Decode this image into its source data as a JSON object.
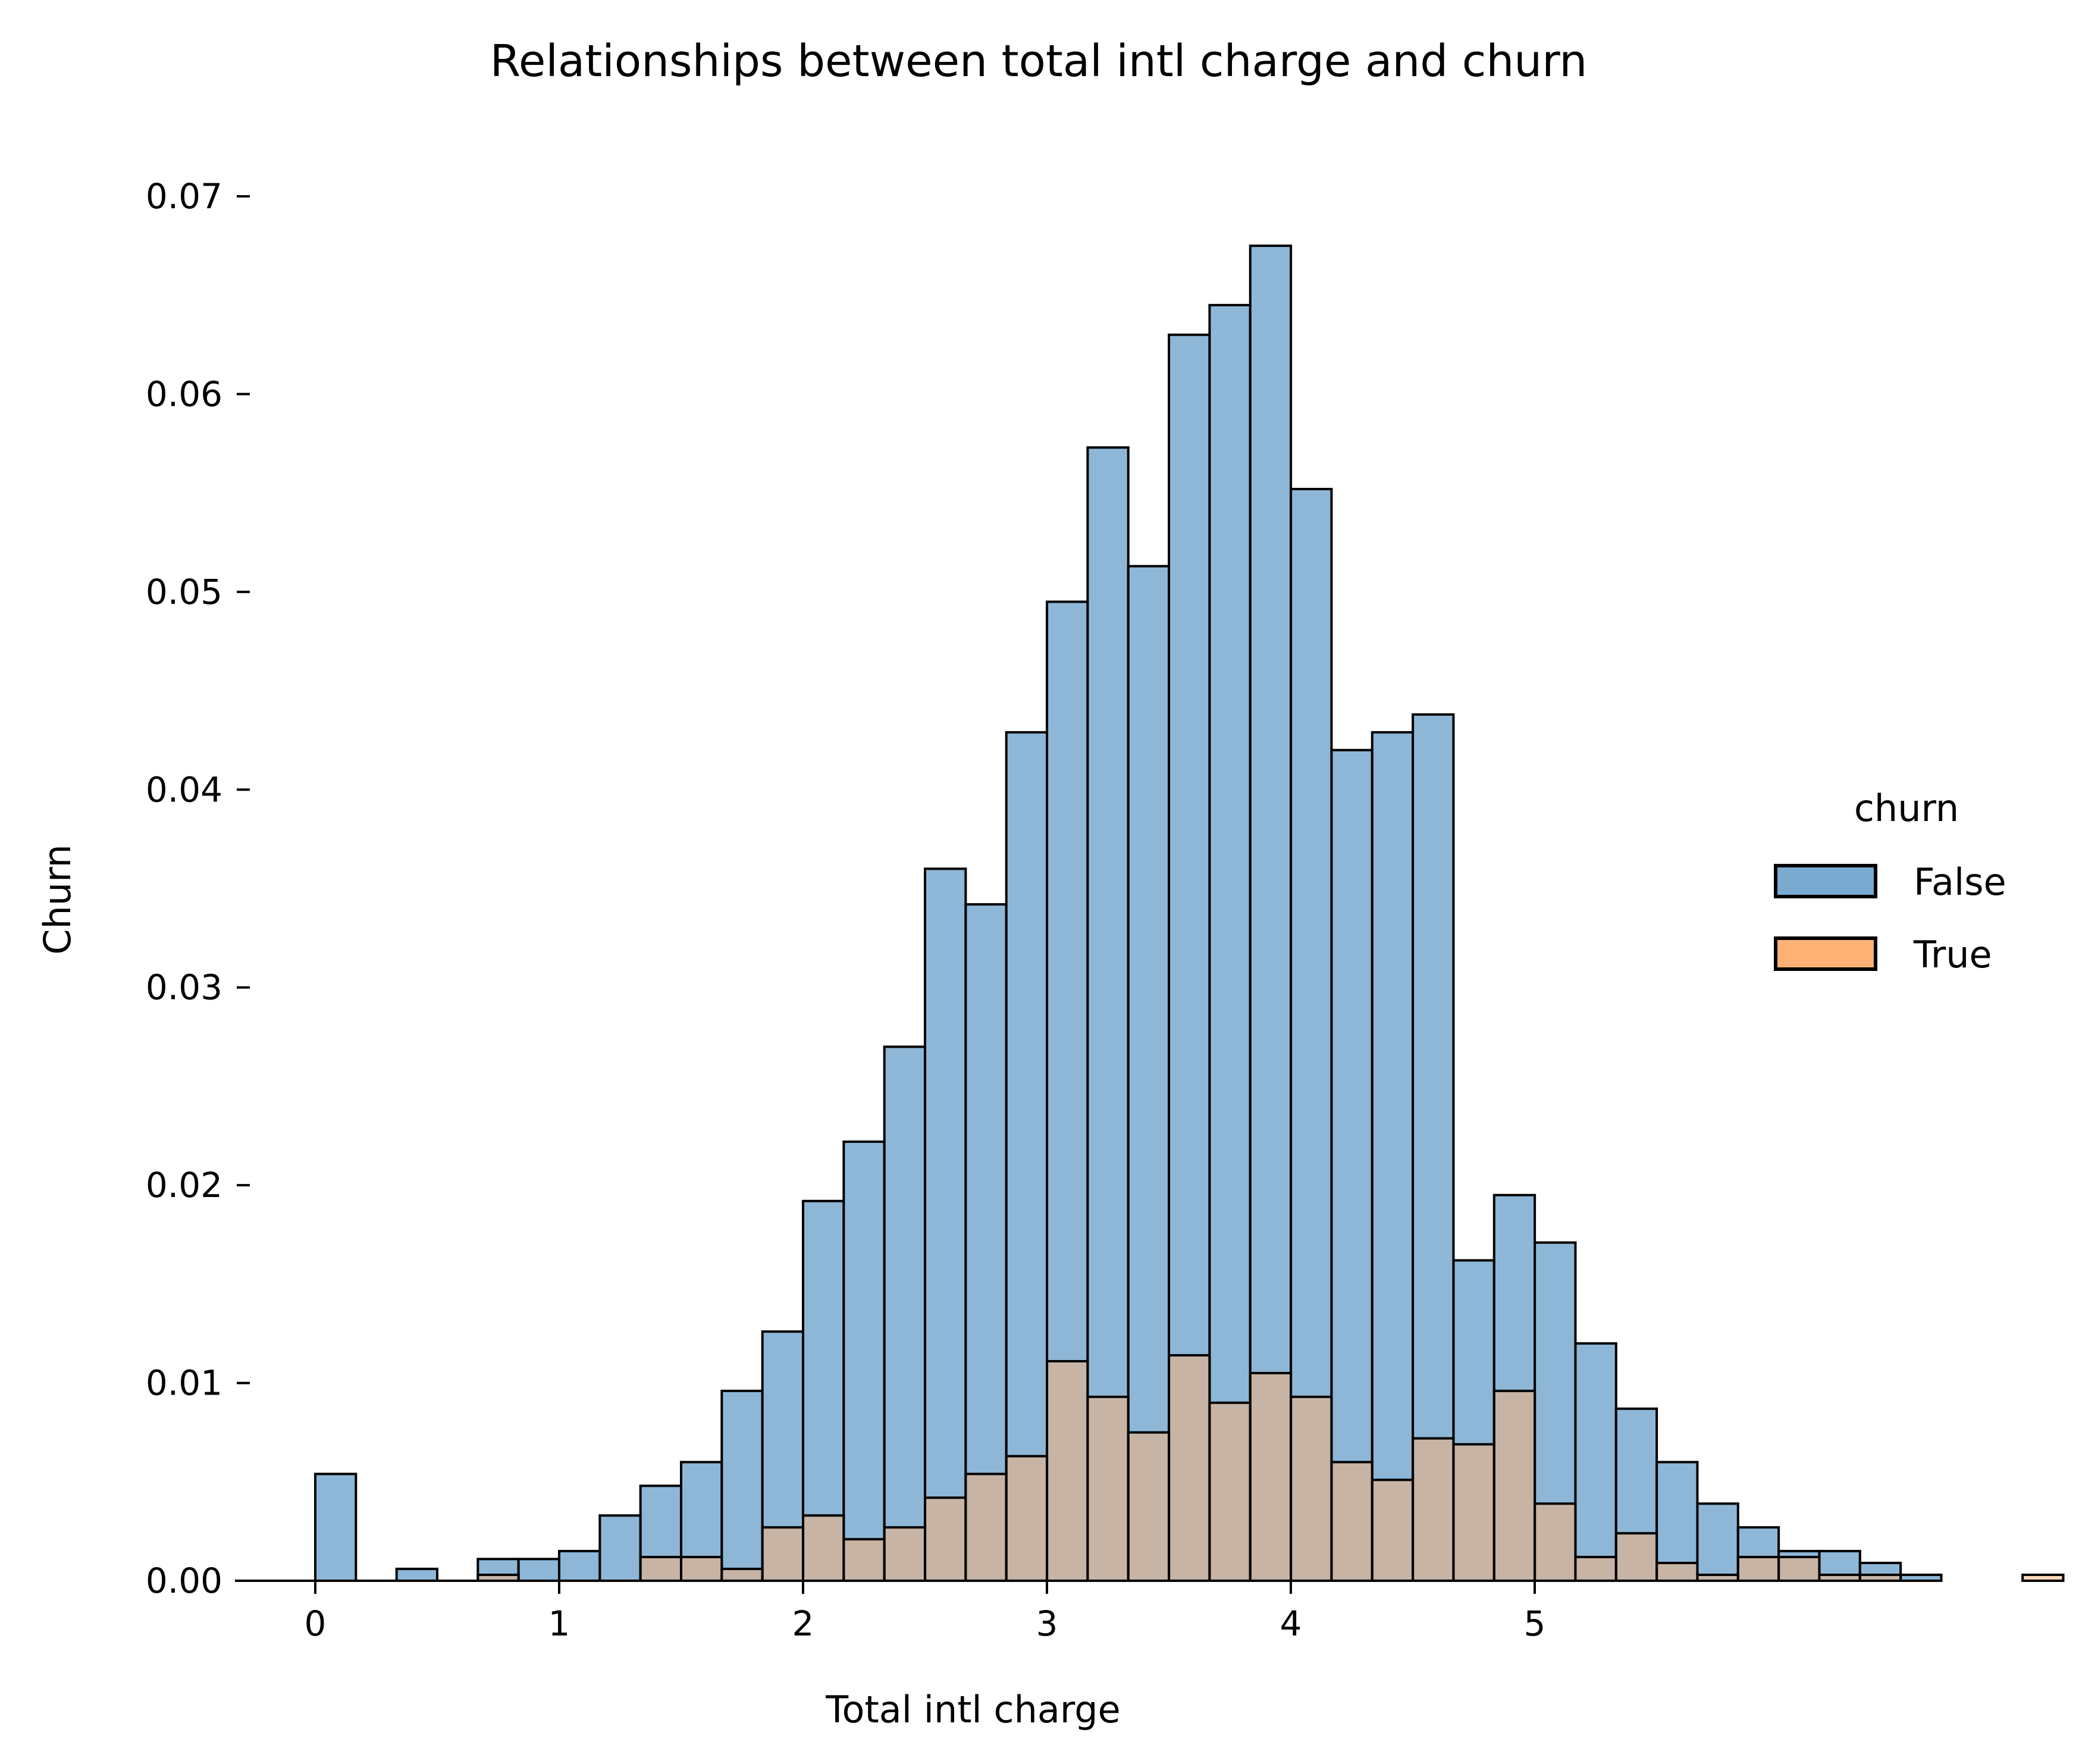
{
  "chart_data": {
    "type": "histogram",
    "title": "Relationships between total intl charge and churn",
    "xlabel": "Total intl charge",
    "ylabel": "Churn",
    "xlim": [
      -0.33,
      5.67
    ],
    "ylim": [
      0,
      0.07
    ],
    "xticks": [
      0,
      1,
      2,
      3,
      4,
      5
    ],
    "yticks": [
      0.0,
      0.01,
      0.02,
      0.03,
      0.04,
      0.05,
      0.06,
      0.07
    ],
    "ytick_labels": [
      "0.00",
      "0.01",
      "0.02",
      "0.03",
      "0.04",
      "0.05",
      "0.06",
      "0.07"
    ],
    "bin_start": 0.0,
    "bin_width": 0.1274,
    "grid": false,
    "legend": {
      "title": "churn",
      "placement": "right",
      "entries": [
        {
          "label": "False",
          "color": "#7aaad0"
        },
        {
          "label": "True",
          "color": "#ffb274"
        }
      ]
    },
    "colors": {
      "false_fill": "#7aaad0",
      "true_fill": "#ffb274",
      "overlap_fill": "#8a9a9f",
      "edge": "#000000"
    },
    "series": [
      {
        "name": "False",
        "values": [
          0.0054,
          0,
          0.0006,
          0,
          0.0011,
          0.0011,
          0.0015,
          0.0033,
          0.0048,
          0.006,
          0.0096,
          0.0126,
          0.0192,
          0.0222,
          0.027,
          0.036,
          0.0342,
          0.0429,
          0.0495,
          0.0573,
          0.0513,
          0.063,
          0.0645,
          0.0675,
          0.0552,
          0.042,
          0.0429,
          0.0438,
          0.0162,
          0.0195,
          0.0171,
          0.012,
          0.0087,
          0.006,
          0.0039,
          0.0027,
          0.0015,
          0.0015,
          0.0009,
          0.0003,
          0,
          0,
          0
        ]
      },
      {
        "name": "True",
        "values": [
          0,
          0,
          0,
          0,
          0.0003,
          0,
          0,
          0,
          0.0012,
          0.0012,
          0.0006,
          0.0027,
          0.0033,
          0.0021,
          0.0027,
          0.0042,
          0.0054,
          0.0063,
          0.0111,
          0.0093,
          0.0075,
          0.0114,
          0.009,
          0.0105,
          0.0093,
          0.006,
          0.0051,
          0.0072,
          0.0069,
          0.0096,
          0.0039,
          0.0012,
          0.0024,
          0.0009,
          0.0003,
          0.0012,
          0.0012,
          0.0003,
          0.0003,
          0,
          0,
          0,
          0.0003
        ]
      }
    ]
  }
}
